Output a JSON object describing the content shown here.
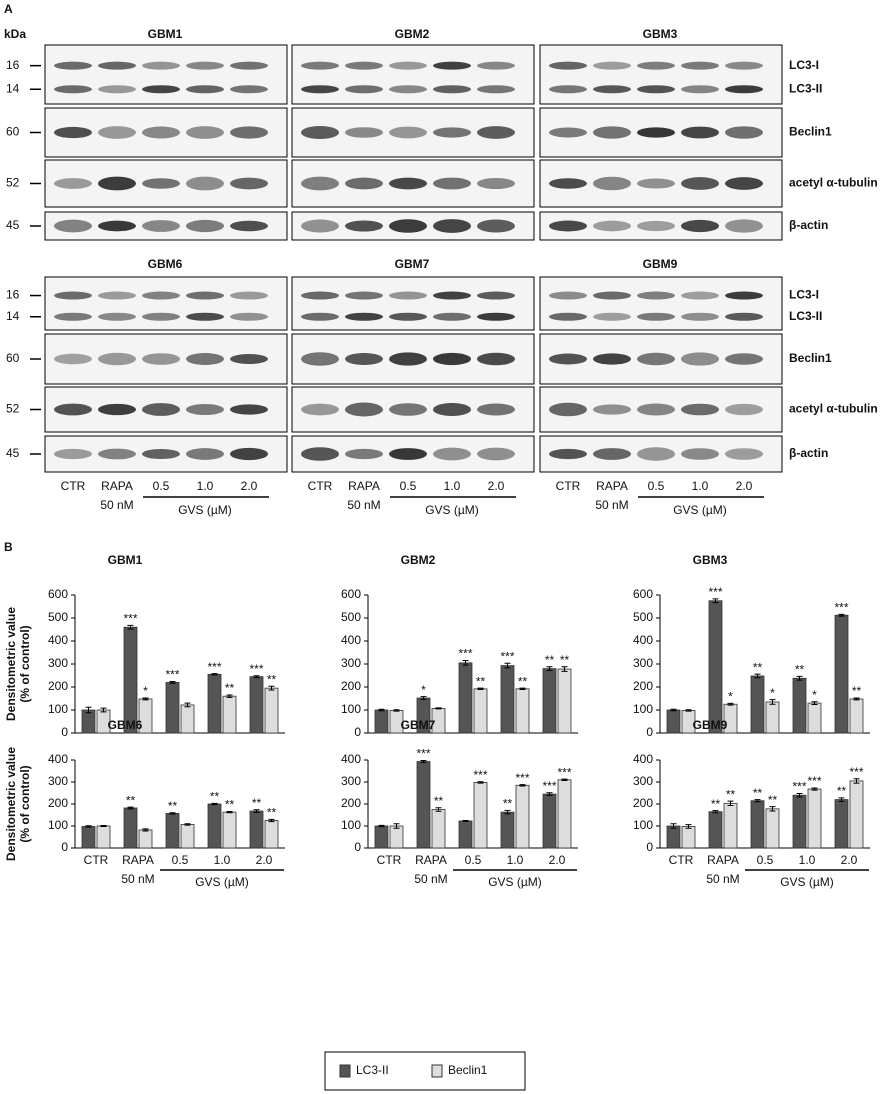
{
  "panel_a": {
    "label": "A",
    "unit": "kDa",
    "rows": [
      [
        "GBM1",
        "GBM2",
        "GBM3"
      ],
      [
        "GBM6",
        "GBM7",
        "GBM9"
      ]
    ],
    "markers": [
      "16",
      "14",
      "60",
      "52",
      "45"
    ],
    "proteins": [
      "LC3-I",
      "LC3-II",
      "Beclin1",
      "acetyl α-tubulin",
      "β-actin"
    ],
    "lanes": [
      "CTR",
      "RAPA",
      "0.5",
      "1.0",
      "2.0"
    ],
    "lane_sublabel": "50 nM",
    "group_label": "GVS (µM)"
  },
  "panel_b_label": "B",
  "chart_data": [
    {
      "type": "bar",
      "title": "GBM1",
      "ylabel": [
        "Densitometric value",
        "(% of control)"
      ],
      "ylim": [
        0,
        600
      ],
      "yticks": [
        0,
        100,
        200,
        300,
        400,
        500,
        600
      ],
      "series": [
        {
          "name": "LC3-II",
          "color": "#555555",
          "values": [
            100,
            460,
            220,
            255,
            245
          ],
          "errors": [
            12,
            8,
            4,
            3,
            4
          ],
          "annotations": [
            null,
            "***",
            "***",
            "***",
            "***"
          ]
        },
        {
          "name": "Beclin1",
          "color": "#dddddd",
          "values": [
            100,
            148,
            122,
            160,
            195
          ],
          "errors": [
            8,
            4,
            8,
            5,
            8
          ],
          "annotations": [
            null,
            "*",
            null,
            "**",
            "**"
          ]
        }
      ]
    },
    {
      "type": "bar",
      "title": "GBM2",
      "ylim": [
        0,
        600
      ],
      "yticks": [
        0,
        100,
        200,
        300,
        400,
        500,
        600
      ],
      "series": [
        {
          "name": "LC3-II",
          "color": "#555555",
          "values": [
            100,
            152,
            305,
            293,
            280
          ],
          "errors": [
            3,
            6,
            10,
            10,
            8
          ],
          "annotations": [
            null,
            "*",
            "***",
            "***",
            "**"
          ]
        },
        {
          "name": "Beclin1",
          "color": "#dddddd",
          "values": [
            98,
            107,
            192,
            192,
            278
          ],
          "errors": [
            3,
            2,
            3,
            3,
            10
          ],
          "annotations": [
            null,
            null,
            "**",
            "**",
            "**"
          ]
        }
      ]
    },
    {
      "type": "bar",
      "title": "GBM3",
      "ylim": [
        0,
        600
      ],
      "yticks": [
        0,
        100,
        200,
        300,
        400,
        500,
        600
      ],
      "series": [
        {
          "name": "LC3-II",
          "color": "#555555",
          "values": [
            100,
            575,
            248,
            238,
            512
          ],
          "errors": [
            3,
            8,
            8,
            8,
            4
          ],
          "annotations": [
            null,
            "***",
            "**",
            "**",
            "***"
          ]
        },
        {
          "name": "Beclin1",
          "color": "#dddddd",
          "values": [
            98,
            125,
            135,
            130,
            148
          ],
          "errors": [
            3,
            4,
            10,
            6,
            4
          ],
          "annotations": [
            null,
            "*",
            "*",
            "*",
            "**"
          ]
        }
      ]
    },
    {
      "type": "bar",
      "title": "GBM6",
      "ylabel": [
        "Densitometric value",
        "(% of control)"
      ],
      "categories": [
        "CTR",
        "RAPA",
        "0.5",
        "1.0",
        "2.0"
      ],
      "category_sublabels": [
        null,
        "50 nM",
        null,
        null,
        null
      ],
      "group_label": "GVS (µM)",
      "ylim": [
        0,
        400
      ],
      "yticks": [
        0,
        100,
        200,
        300,
        400
      ],
      "series": [
        {
          "name": "LC3-II",
          "color": "#555555",
          "values": [
            98,
            182,
            157,
            200,
            168
          ],
          "errors": [
            3,
            4,
            3,
            3,
            6
          ],
          "annotations": [
            null,
            "**",
            "**",
            "**",
            "**"
          ]
        },
        {
          "name": "Beclin1",
          "color": "#dddddd",
          "values": [
            100,
            82,
            107,
            163,
            125
          ],
          "errors": [
            2,
            5,
            3,
            3,
            5
          ],
          "annotations": [
            null,
            null,
            null,
            "**",
            "**"
          ]
        }
      ]
    },
    {
      "type": "bar",
      "title": "GBM7",
      "categories": [
        "CTR",
        "RAPA",
        "0.5",
        "1.0",
        "2.0"
      ],
      "category_sublabels": [
        null,
        "50 nM",
        null,
        null,
        null
      ],
      "group_label": "GVS (µM)",
      "ylim": [
        0,
        400
      ],
      "yticks": [
        0,
        100,
        200,
        300,
        400
      ],
      "series": [
        {
          "name": "LC3-II",
          "color": "#555555",
          "values": [
            100,
            393,
            123,
            163,
            245
          ],
          "errors": [
            3,
            5,
            2,
            8,
            6
          ],
          "annotations": [
            null,
            "***",
            null,
            "**",
            "***"
          ]
        },
        {
          "name": "Beclin1",
          "color": "#dddddd",
          "values": [
            100,
            175,
            298,
            285,
            310
          ],
          "errors": [
            10,
            8,
            3,
            3,
            3
          ],
          "annotations": [
            null,
            "**",
            "***",
            "***",
            "***"
          ]
        }
      ]
    },
    {
      "type": "bar",
      "title": "GBM9",
      "categories": [
        "CTR",
        "RAPA",
        "0.5",
        "1.0",
        "2.0"
      ],
      "category_sublabels": [
        null,
        "50 nM",
        null,
        null,
        null
      ],
      "group_label": "GVS (µM)",
      "ylim": [
        0,
        400
      ],
      "yticks": [
        0,
        100,
        200,
        300,
        400
      ],
      "series": [
        {
          "name": "LC3-II",
          "color": "#555555",
          "values": [
            100,
            165,
            215,
            240,
            220
          ],
          "errors": [
            10,
            5,
            5,
            8,
            8
          ],
          "annotations": [
            null,
            "**",
            "**",
            "***",
            "**"
          ]
        },
        {
          "name": "Beclin1",
          "color": "#dddddd",
          "values": [
            98,
            203,
            178,
            268,
            305
          ],
          "errors": [
            8,
            10,
            10,
            5,
            10
          ],
          "annotations": [
            null,
            "**",
            "**",
            "***",
            "***"
          ]
        }
      ]
    }
  ]
}
